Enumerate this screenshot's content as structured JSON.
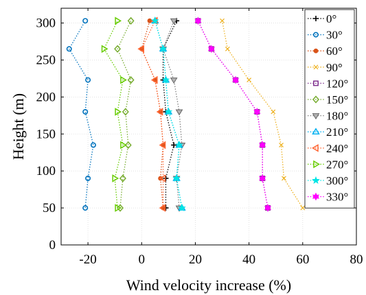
{
  "chart_data": {
    "type": "line",
    "xlabel": "Wind velocity increase (%)",
    "ylabel": "Height (m)",
    "xlim": [
      -30,
      80
    ],
    "ylim": [
      0,
      320
    ],
    "xticks": [
      -20,
      0,
      20,
      40,
      60,
      80
    ],
    "yticks": [
      0,
      50,
      100,
      150,
      200,
      250,
      300
    ],
    "grid": true,
    "legend_position": "right",
    "heights": [
      50,
      90,
      135,
      180,
      223,
      265,
      303
    ],
    "series": [
      {
        "name": "0°",
        "color": "#000000",
        "marker": "plus",
        "x": [
          9,
          9,
          12,
          9,
          8,
          8,
          13
        ]
      },
      {
        "name": "30°",
        "color": "#0072BD",
        "marker": "circle",
        "x": [
          -21,
          -20,
          -18,
          -21,
          -20,
          -27,
          -21
        ]
      },
      {
        "name": "60°",
        "color": "#D95319",
        "marker": "dot",
        "x": [
          8,
          7,
          8,
          7,
          5,
          0,
          3
        ]
      },
      {
        "name": "90°",
        "color": "#EDB120",
        "marker": "x",
        "x": [
          60,
          53,
          52,
          49,
          40,
          32,
          30
        ]
      },
      {
        "name": "120°",
        "color": "#7E2F8E",
        "marker": "square",
        "x": [
          47,
          45,
          45,
          43,
          35,
          26,
          21
        ]
      },
      {
        "name": "150°",
        "color": "#77AC30",
        "marker": "diamond",
        "x": [
          -8,
          -7,
          -5,
          -6,
          -4,
          -9,
          -4
        ]
      },
      {
        "name": "180°",
        "color": "#808080",
        "marker": "tri-down",
        "x": [
          14,
          13,
          15,
          14,
          12,
          8,
          12
        ]
      },
      {
        "name": "210°",
        "color": "#00B0F0",
        "marker": "tri-up",
        "x": [
          15,
          13,
          14,
          10,
          9,
          8,
          5
        ]
      },
      {
        "name": "240°",
        "color": "#FF6633",
        "marker": "tri-left",
        "x": [
          8,
          8,
          8,
          7,
          5,
          0,
          5
        ]
      },
      {
        "name": "270°",
        "color": "#66CC00",
        "marker": "tri-right",
        "x": [
          -9,
          -10,
          -7,
          -9,
          -7,
          -14,
          -9
        ]
      },
      {
        "name": "300°",
        "color": "#00E5E5",
        "marker": "star",
        "x": [
          15,
          13,
          14,
          10,
          9,
          8,
          5
        ]
      },
      {
        "name": "330°",
        "color": "#FF00FF",
        "marker": "hexagram",
        "x": [
          47,
          45,
          45,
          43,
          35,
          26,
          21
        ]
      }
    ]
  }
}
